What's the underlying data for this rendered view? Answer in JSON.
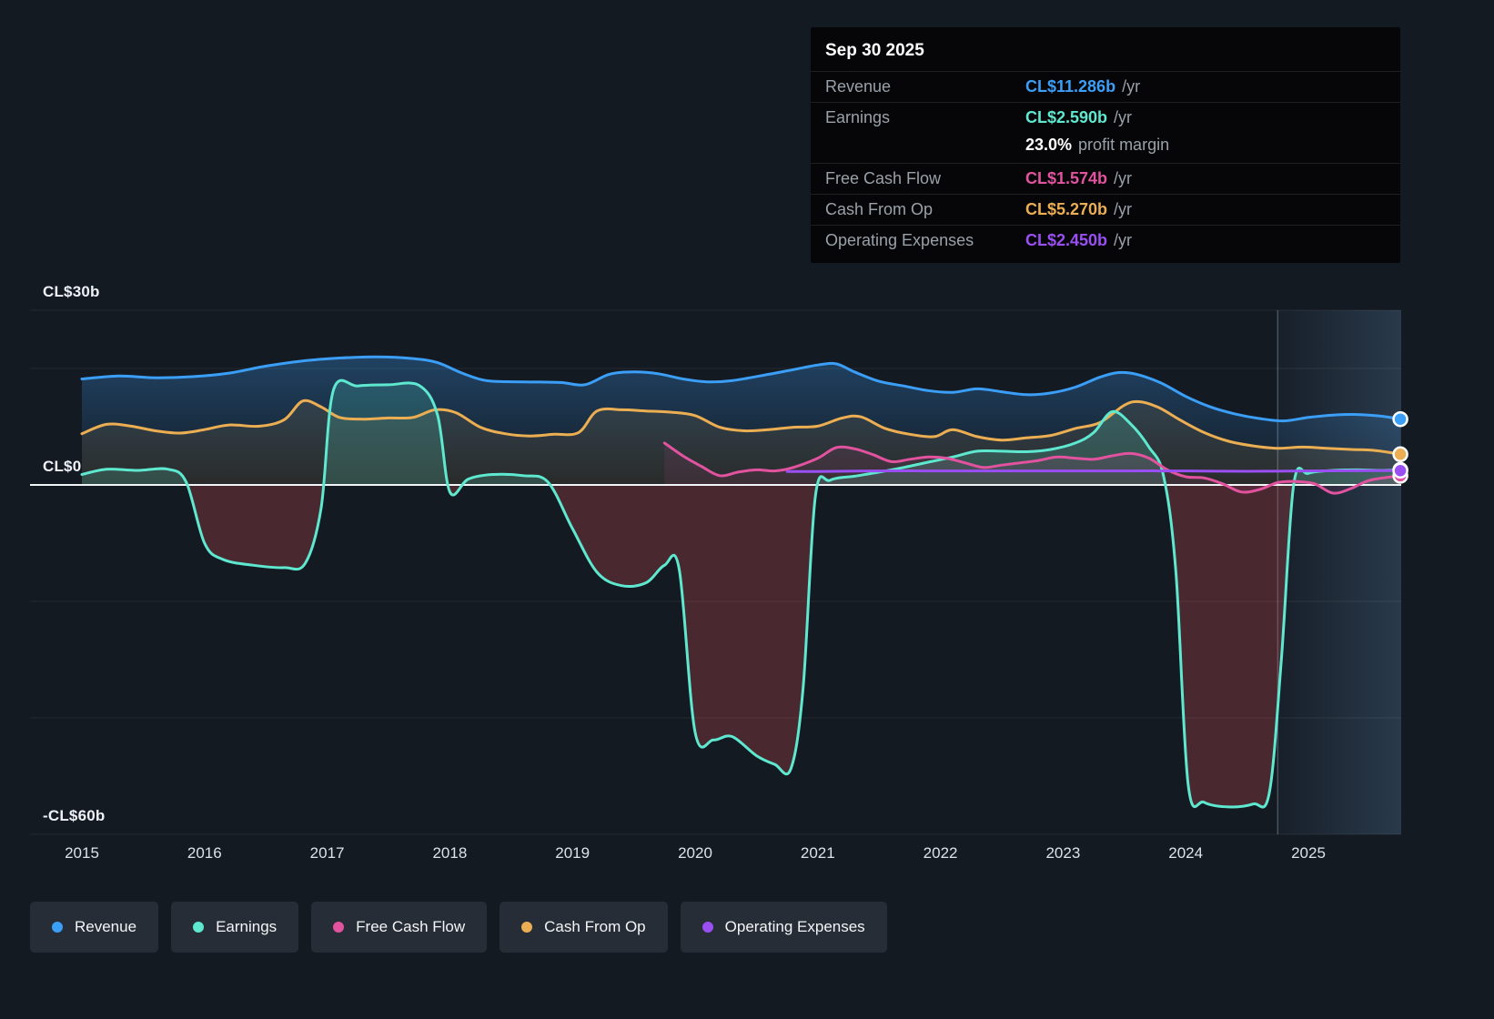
{
  "tooltip": {
    "date": "Sep 30 2025",
    "rows": [
      {
        "label": "Revenue",
        "value": "CL$11.286b",
        "suffix": "/yr",
        "color": "#3b9ef7"
      },
      {
        "label": "Earnings",
        "value": "CL$2.590b",
        "suffix": "/yr",
        "color": "#5ee8cf",
        "sub_value": "23.0%",
        "sub_label": "profit margin"
      },
      {
        "label": "Free Cash Flow",
        "value": "CL$1.574b",
        "suffix": "/yr",
        "color": "#e2539f"
      },
      {
        "label": "Cash From Op",
        "value": "CL$5.270b",
        "suffix": "/yr",
        "color": "#ecae52"
      },
      {
        "label": "Operating Expenses",
        "value": "CL$2.450b",
        "suffix": "/yr",
        "color": "#9a4ff2"
      }
    ]
  },
  "legend": {
    "items": [
      {
        "label": "Revenue",
        "color": "#3b9ef7"
      },
      {
        "label": "Earnings",
        "color": "#5ee8cf"
      },
      {
        "label": "Free Cash Flow",
        "color": "#e2539f"
      },
      {
        "label": "Cash From Op",
        "color": "#ecae52"
      },
      {
        "label": "Operating Expenses",
        "color": "#9a4ff2"
      }
    ]
  },
  "chart_data": {
    "type": "area",
    "title": "",
    "xlabel": "",
    "ylabel": "",
    "units": "CL$ billions per year",
    "ylim": [
      -63,
      33
    ],
    "x_range": [
      2015,
      2025.75
    ],
    "grid_values": [
      30,
      20,
      0,
      -20,
      -40,
      -60
    ],
    "highlight_from_x": 2024.75,
    "y_tick_labels": [
      {
        "label": "CL$30b",
        "value": 30
      },
      {
        "label": "CL$0",
        "value": 0
      },
      {
        "label": "-CL$60b",
        "value": -60
      }
    ],
    "x_ticks": [
      "2015",
      "2016",
      "2017",
      "2018",
      "2019",
      "2020",
      "2021",
      "2022",
      "2023",
      "2024",
      "2025"
    ],
    "series": [
      {
        "name": "Revenue",
        "color": "#3b9ef7",
        "points": [
          [
            2015.0,
            18.2
          ],
          [
            2015.3,
            18.7
          ],
          [
            2015.6,
            18.4
          ],
          [
            2015.9,
            18.6
          ],
          [
            2016.2,
            19.2
          ],
          [
            2016.5,
            20.4
          ],
          [
            2016.8,
            21.3
          ],
          [
            2017.1,
            21.8
          ],
          [
            2017.4,
            22.0
          ],
          [
            2017.7,
            21.7
          ],
          [
            2017.9,
            21.0
          ],
          [
            2018.1,
            19.2
          ],
          [
            2018.3,
            17.9
          ],
          [
            2018.6,
            17.7
          ],
          [
            2018.9,
            17.6
          ],
          [
            2019.1,
            17.2
          ],
          [
            2019.3,
            19.0
          ],
          [
            2019.5,
            19.4
          ],
          [
            2019.7,
            19.1
          ],
          [
            2019.9,
            18.2
          ],
          [
            2020.1,
            17.7
          ],
          [
            2020.3,
            17.9
          ],
          [
            2020.6,
            19.0
          ],
          [
            2020.8,
            19.8
          ],
          [
            2021.0,
            20.6
          ],
          [
            2021.15,
            20.8
          ],
          [
            2021.3,
            19.4
          ],
          [
            2021.5,
            17.8
          ],
          [
            2021.7,
            17.0
          ],
          [
            2021.9,
            16.2
          ],
          [
            2022.1,
            15.9
          ],
          [
            2022.3,
            16.5
          ],
          [
            2022.5,
            16.0
          ],
          [
            2022.7,
            15.5
          ],
          [
            2022.9,
            15.8
          ],
          [
            2023.1,
            16.8
          ],
          [
            2023.3,
            18.5
          ],
          [
            2023.45,
            19.3
          ],
          [
            2023.6,
            19.0
          ],
          [
            2023.8,
            17.5
          ],
          [
            2024.0,
            15.2
          ],
          [
            2024.2,
            13.4
          ],
          [
            2024.4,
            12.2
          ],
          [
            2024.6,
            11.4
          ],
          [
            2024.8,
            11.0
          ],
          [
            2025.0,
            11.6
          ],
          [
            2025.2,
            12.0
          ],
          [
            2025.4,
            12.1
          ],
          [
            2025.6,
            11.8
          ],
          [
            2025.75,
            11.29
          ]
        ]
      },
      {
        "name": "Earnings",
        "color": "#5ee8cf",
        "points": [
          [
            2015.0,
            1.8
          ],
          [
            2015.2,
            2.7
          ],
          [
            2015.45,
            2.5
          ],
          [
            2015.7,
            2.7
          ],
          [
            2015.85,
            0.5
          ],
          [
            2016.0,
            -10.0
          ],
          [
            2016.15,
            -12.8
          ],
          [
            2016.4,
            -13.8
          ],
          [
            2016.65,
            -14.2
          ],
          [
            2016.82,
            -13.5
          ],
          [
            2016.95,
            -4.0
          ],
          [
            2017.05,
            16.2
          ],
          [
            2017.25,
            17.0
          ],
          [
            2017.5,
            17.2
          ],
          [
            2017.75,
            17.1
          ],
          [
            2017.9,
            12.0
          ],
          [
            2018.0,
            -1.2
          ],
          [
            2018.15,
            1.0
          ],
          [
            2018.35,
            1.8
          ],
          [
            2018.6,
            1.6
          ],
          [
            2018.8,
            0.5
          ],
          [
            2019.0,
            -7.5
          ],
          [
            2019.2,
            -15.0
          ],
          [
            2019.4,
            -17.3
          ],
          [
            2019.6,
            -16.8
          ],
          [
            2019.75,
            -13.8
          ],
          [
            2019.87,
            -14.5
          ],
          [
            2020.0,
            -42.5
          ],
          [
            2020.15,
            -43.8
          ],
          [
            2020.3,
            -43.2
          ],
          [
            2020.5,
            -46.5
          ],
          [
            2020.65,
            -48.0
          ],
          [
            2020.78,
            -48.8
          ],
          [
            2020.88,
            -35.0
          ],
          [
            2020.98,
            -2.0
          ],
          [
            2021.1,
            0.8
          ],
          [
            2021.3,
            1.5
          ],
          [
            2021.5,
            2.2
          ],
          [
            2021.7,
            3.0
          ],
          [
            2021.9,
            3.9
          ],
          [
            2022.1,
            4.8
          ],
          [
            2022.3,
            5.8
          ],
          [
            2022.5,
            5.8
          ],
          [
            2022.7,
            5.7
          ],
          [
            2022.9,
            6.1
          ],
          [
            2023.1,
            7.2
          ],
          [
            2023.25,
            9.0
          ],
          [
            2023.4,
            12.6
          ],
          [
            2023.55,
            10.5
          ],
          [
            2023.7,
            6.5
          ],
          [
            2023.82,
            1.5
          ],
          [
            2023.92,
            -15.0
          ],
          [
            2024.02,
            -51.5
          ],
          [
            2024.15,
            -54.5
          ],
          [
            2024.35,
            -55.3
          ],
          [
            2024.55,
            -54.8
          ],
          [
            2024.68,
            -53.0
          ],
          [
            2024.78,
            -30.0
          ],
          [
            2024.88,
            0.0
          ],
          [
            2025.0,
            2.0
          ],
          [
            2025.2,
            2.5
          ],
          [
            2025.4,
            2.6
          ],
          [
            2025.6,
            2.5
          ],
          [
            2025.75,
            2.59
          ]
        ]
      },
      {
        "name": "Free Cash Flow",
        "color": "#e2539f",
        "points": [
          [
            2019.75,
            7.2
          ],
          [
            2019.9,
            5.0
          ],
          [
            2020.05,
            3.2
          ],
          [
            2020.2,
            1.6
          ],
          [
            2020.35,
            2.2
          ],
          [
            2020.5,
            2.6
          ],
          [
            2020.65,
            2.4
          ],
          [
            2020.8,
            3.0
          ],
          [
            2021.0,
            4.6
          ],
          [
            2021.15,
            6.4
          ],
          [
            2021.3,
            6.2
          ],
          [
            2021.45,
            5.2
          ],
          [
            2021.6,
            4.0
          ],
          [
            2021.75,
            4.4
          ],
          [
            2021.9,
            4.8
          ],
          [
            2022.05,
            4.6
          ],
          [
            2022.2,
            3.8
          ],
          [
            2022.35,
            3.0
          ],
          [
            2022.5,
            3.4
          ],
          [
            2022.65,
            3.8
          ],
          [
            2022.8,
            4.2
          ],
          [
            2022.95,
            4.8
          ],
          [
            2023.1,
            4.6
          ],
          [
            2023.25,
            4.4
          ],
          [
            2023.4,
            5.0
          ],
          [
            2023.55,
            5.4
          ],
          [
            2023.7,
            4.6
          ],
          [
            2023.85,
            2.6
          ],
          [
            2024.0,
            1.4
          ],
          [
            2024.15,
            1.2
          ],
          [
            2024.3,
            0.2
          ],
          [
            2024.45,
            -1.2
          ],
          [
            2024.6,
            -0.8
          ],
          [
            2024.75,
            0.4
          ],
          [
            2024.9,
            0.6
          ],
          [
            2025.05,
            0.2
          ],
          [
            2025.2,
            -1.4
          ],
          [
            2025.35,
            -0.6
          ],
          [
            2025.5,
            0.8
          ],
          [
            2025.75,
            1.574
          ]
        ]
      },
      {
        "name": "Cash From Op",
        "color": "#ecae52",
        "points": [
          [
            2015.0,
            8.8
          ],
          [
            2015.2,
            10.4
          ],
          [
            2015.4,
            10.1
          ],
          [
            2015.6,
            9.3
          ],
          [
            2015.8,
            8.9
          ],
          [
            2016.0,
            9.5
          ],
          [
            2016.2,
            10.3
          ],
          [
            2016.45,
            10.1
          ],
          [
            2016.65,
            11.2
          ],
          [
            2016.8,
            14.4
          ],
          [
            2016.95,
            13.4
          ],
          [
            2017.1,
            11.6
          ],
          [
            2017.3,
            11.3
          ],
          [
            2017.5,
            11.5
          ],
          [
            2017.7,
            11.6
          ],
          [
            2017.88,
            12.9
          ],
          [
            2018.05,
            12.4
          ],
          [
            2018.25,
            9.9
          ],
          [
            2018.45,
            8.8
          ],
          [
            2018.65,
            8.4
          ],
          [
            2018.85,
            8.7
          ],
          [
            2019.05,
            9.0
          ],
          [
            2019.2,
            12.7
          ],
          [
            2019.4,
            12.9
          ],
          [
            2019.6,
            12.7
          ],
          [
            2019.8,
            12.5
          ],
          [
            2020.0,
            11.9
          ],
          [
            2020.2,
            9.9
          ],
          [
            2020.4,
            9.3
          ],
          [
            2020.6,
            9.5
          ],
          [
            2020.8,
            9.9
          ],
          [
            2021.0,
            10.1
          ],
          [
            2021.2,
            11.5
          ],
          [
            2021.35,
            11.7
          ],
          [
            2021.55,
            9.7
          ],
          [
            2021.75,
            8.7
          ],
          [
            2021.95,
            8.3
          ],
          [
            2022.1,
            9.5
          ],
          [
            2022.3,
            8.3
          ],
          [
            2022.5,
            7.7
          ],
          [
            2022.7,
            8.1
          ],
          [
            2022.9,
            8.5
          ],
          [
            2023.1,
            9.7
          ],
          [
            2023.3,
            10.7
          ],
          [
            2023.5,
            13.7
          ],
          [
            2023.62,
            14.3
          ],
          [
            2023.78,
            13.3
          ],
          [
            2023.95,
            11.2
          ],
          [
            2024.15,
            9.0
          ],
          [
            2024.35,
            7.5
          ],
          [
            2024.55,
            6.7
          ],
          [
            2024.75,
            6.3
          ],
          [
            2024.95,
            6.5
          ],
          [
            2025.15,
            6.3
          ],
          [
            2025.35,
            6.1
          ],
          [
            2025.55,
            5.9
          ],
          [
            2025.75,
            5.27
          ]
        ]
      },
      {
        "name": "Operating Expenses",
        "color": "#9a4ff2",
        "points": [
          [
            2020.75,
            2.3
          ],
          [
            2021.0,
            2.3
          ],
          [
            2021.5,
            2.4
          ],
          [
            2022.0,
            2.4
          ],
          [
            2022.5,
            2.4
          ],
          [
            2023.0,
            2.4
          ],
          [
            2023.5,
            2.4
          ],
          [
            2024.0,
            2.4
          ],
          [
            2024.5,
            2.35
          ],
          [
            2025.0,
            2.4
          ],
          [
            2025.5,
            2.45
          ],
          [
            2025.75,
            2.45
          ]
        ]
      }
    ]
  }
}
